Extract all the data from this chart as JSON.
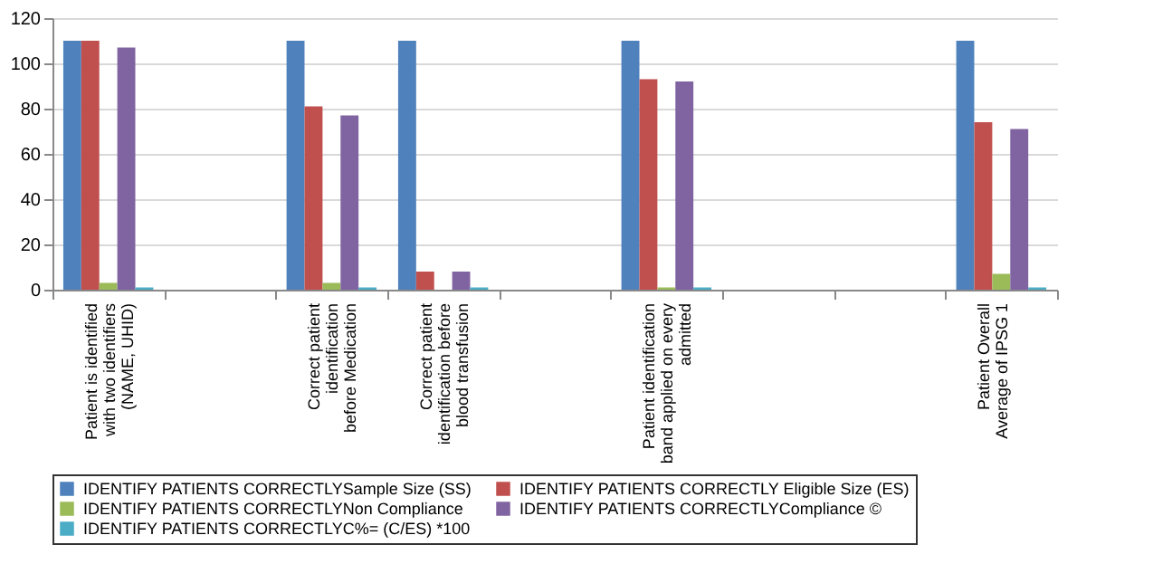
{
  "chart_data": {
    "type": "bar",
    "categories": [
      "Patient is identified with two identifiers (NAME, UHID)",
      null,
      "Correct patient identification before Medication",
      "Correct patient identification before blood transfusion",
      null,
      "Patient identification band applied on every admitted",
      null,
      null,
      "Patient Overall Average of IPSG 1"
    ],
    "series": [
      {
        "name": "IDENTIFY PATIENTS CORRECTLYSample Size (SS)",
        "color": "#4f81bd",
        "values": [
          110,
          null,
          110,
          110,
          null,
          110,
          null,
          null,
          110
        ]
      },
      {
        "name": "IDENTIFY PATIENTS CORRECTLY Eligible Size (ES)",
        "color": "#c0504d",
        "values": [
          110,
          null,
          81,
          8,
          null,
          93,
          null,
          null,
          74
        ]
      },
      {
        "name": "IDENTIFY PATIENTS CORRECTLYNon Compliance",
        "color": "#9bbb59",
        "values": [
          3,
          null,
          3,
          0,
          null,
          1,
          null,
          null,
          7
        ]
      },
      {
        "name": "IDENTIFY PATIENTS CORRECTLYCompliance ©",
        "color": "#8064a2",
        "values": [
          107,
          null,
          77,
          8,
          null,
          92,
          null,
          null,
          71
        ]
      },
      {
        "name": "IDENTIFY PATIENTS CORRECTLYC%= (C/ES) *100",
        "color": "#4bacc6",
        "values": [
          1,
          null,
          1,
          1,
          null,
          1,
          null,
          null,
          1
        ]
      }
    ],
    "ylim": [
      0,
      120
    ],
    "yticks": [
      0,
      20,
      40,
      60,
      80,
      100,
      120
    ],
    "grid": "y",
    "legend": "bottom"
  }
}
